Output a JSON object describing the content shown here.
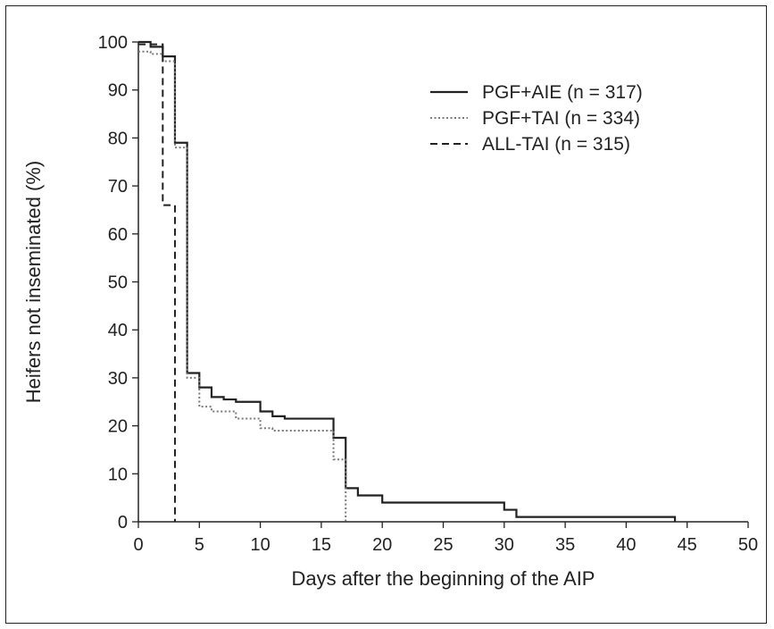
{
  "chart_data": {
    "type": "line",
    "subtype": "step",
    "title": "",
    "xlabel": "Days after the beginning of the AIP",
    "ylabel": "Heifers not inseminated (%)",
    "xlim": [
      0,
      50
    ],
    "ylim": [
      0,
      100
    ],
    "x_ticks": [
      0,
      5,
      10,
      15,
      20,
      25,
      30,
      35,
      40,
      45,
      50
    ],
    "y_ticks": [
      0,
      10,
      20,
      30,
      40,
      50,
      60,
      70,
      80,
      90,
      100
    ],
    "grid": false,
    "legend_position": "top-right",
    "series": [
      {
        "name": "PGF+AIE (n = 317)",
        "line_style": "solid",
        "color": "#222222",
        "x": [
          0,
          1,
          2,
          3,
          4,
          5,
          6,
          7,
          8,
          9,
          10,
          11,
          12,
          15,
          16,
          17,
          18,
          20,
          23,
          30,
          31,
          33,
          35,
          44
        ],
        "y": [
          100,
          99,
          97,
          79,
          31,
          28,
          26,
          25.5,
          25,
          25,
          23,
          22,
          21.5,
          21.5,
          17.5,
          7,
          5.5,
          4,
          4,
          2.5,
          1,
          1,
          1,
          0
        ]
      },
      {
        "name": "PGF+TAI  (n = 334)",
        "line_style": "dotted",
        "color": "#7a7a7a",
        "x": [
          0,
          1,
          2,
          3,
          4,
          5,
          6,
          7,
          8,
          9,
          10,
          11,
          12,
          15,
          16,
          17
        ],
        "y": [
          98,
          97.5,
          96,
          78,
          30,
          24,
          23,
          23,
          21.5,
          21.5,
          19.5,
          19,
          19,
          19,
          13,
          0
        ]
      },
      {
        "name": "ALL-TAI (n = 315)",
        "line_style": "dashed",
        "color": "#222222",
        "x": [
          0,
          2,
          3
        ],
        "y": [
          99.5,
          66,
          0
        ]
      }
    ]
  }
}
